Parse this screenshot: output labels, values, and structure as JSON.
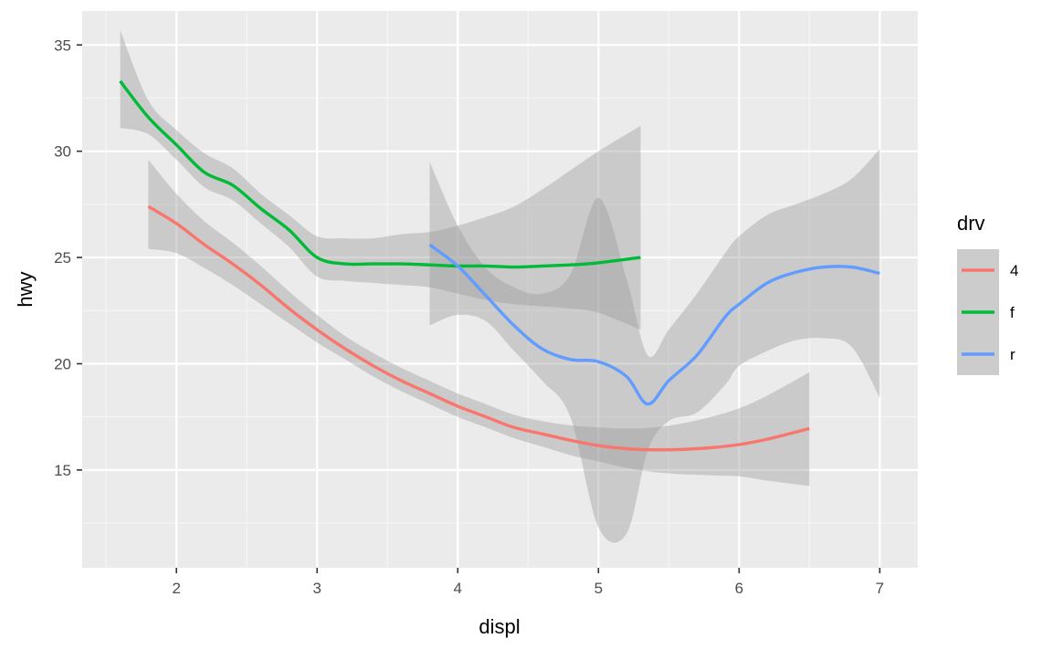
{
  "chart_data": {
    "type": "line",
    "xlabel": "displ",
    "ylabel": "hwy",
    "xlim": [
      1.33,
      7.27
    ],
    "ylim": [
      10.4,
      36.6
    ],
    "x_ticks": [
      2,
      3,
      4,
      5,
      6,
      7
    ],
    "y_ticks": [
      15,
      20,
      25,
      30,
      35
    ],
    "grid": true,
    "legend": {
      "title": "drv",
      "position": "right"
    },
    "series": [
      {
        "name": "4",
        "color": "#F8766D",
        "x": [
          1.8,
          2.0,
          2.2,
          2.4,
          2.6,
          2.8,
          3.0,
          3.2,
          3.4,
          3.6,
          3.8,
          4.0,
          4.2,
          4.4,
          4.6,
          4.8,
          5.0,
          5.2,
          5.4,
          5.6,
          5.8,
          6.0,
          6.2,
          6.5
        ],
        "y": [
          27.4,
          26.6,
          25.6,
          24.7,
          23.7,
          22.6,
          21.6,
          20.7,
          19.9,
          19.2,
          18.6,
          18.0,
          17.5,
          17.0,
          16.7,
          16.4,
          16.15,
          16.0,
          15.95,
          15.97,
          16.05,
          16.2,
          16.45,
          16.95
        ],
        "lower": [
          25.4,
          25.2,
          24.5,
          23.7,
          22.8,
          21.9,
          21.0,
          20.2,
          19.4,
          18.7,
          18.1,
          17.5,
          17.0,
          16.5,
          16.1,
          15.7,
          15.4,
          15.1,
          14.9,
          14.8,
          14.75,
          14.7,
          14.5,
          14.25
        ],
        "upper": [
          29.6,
          28.0,
          26.7,
          25.7,
          24.6,
          23.4,
          22.3,
          21.3,
          20.5,
          19.8,
          19.2,
          18.6,
          18.1,
          17.6,
          17.3,
          17.1,
          17.0,
          16.95,
          17.0,
          17.2,
          17.5,
          17.9,
          18.5,
          19.6
        ]
      },
      {
        "name": "f",
        "color": "#00BA38",
        "x": [
          1.6,
          1.8,
          2.0,
          2.2,
          2.4,
          2.6,
          2.8,
          3.0,
          3.2,
          3.4,
          3.6,
          3.8,
          4.0,
          4.2,
          4.4,
          4.6,
          4.8,
          5.0,
          5.3
        ],
        "y": [
          33.3,
          31.6,
          30.3,
          29.0,
          28.4,
          27.3,
          26.3,
          25.0,
          24.7,
          24.7,
          24.7,
          24.65,
          24.6,
          24.6,
          24.55,
          24.6,
          24.65,
          24.75,
          25.0
        ],
        "lower": [
          31.1,
          30.8,
          29.6,
          28.3,
          27.7,
          26.6,
          25.5,
          24.1,
          23.9,
          23.8,
          23.7,
          23.6,
          23.3,
          23.0,
          22.8,
          22.7,
          22.6,
          22.4,
          21.6
        ],
        "upper": [
          35.7,
          32.4,
          31.0,
          29.9,
          29.2,
          28.0,
          27.0,
          26.0,
          25.9,
          25.9,
          26.1,
          26.2,
          26.5,
          26.9,
          27.4,
          28.2,
          29.1,
          30.0,
          31.2
        ]
      },
      {
        "name": "r",
        "color": "#619CFF",
        "x": [
          3.8,
          4.0,
          4.2,
          4.4,
          4.6,
          4.8,
          5.0,
          5.2,
          5.35,
          5.5,
          5.7,
          5.9,
          6.0,
          6.2,
          6.4,
          6.6,
          6.8,
          7.0
        ],
        "y": [
          25.6,
          24.6,
          23.2,
          21.8,
          20.7,
          20.2,
          20.1,
          19.4,
          18.1,
          19.2,
          20.4,
          22.2,
          22.8,
          23.8,
          24.3,
          24.55,
          24.55,
          24.25
        ],
        "lower": [
          21.8,
          22.3,
          22.0,
          20.6,
          19.2,
          17.5,
          12.3,
          12.0,
          15.9,
          17.3,
          17.7,
          19.0,
          19.9,
          20.6,
          21.1,
          21.2,
          20.8,
          18.4
        ],
        "upper": [
          29.5,
          26.5,
          24.5,
          23.6,
          23.3,
          24.2,
          27.8,
          24.0,
          20.4,
          21.6,
          23.3,
          25.2,
          26.0,
          27.0,
          27.5,
          28.0,
          28.7,
          30.1
        ]
      }
    ]
  }
}
